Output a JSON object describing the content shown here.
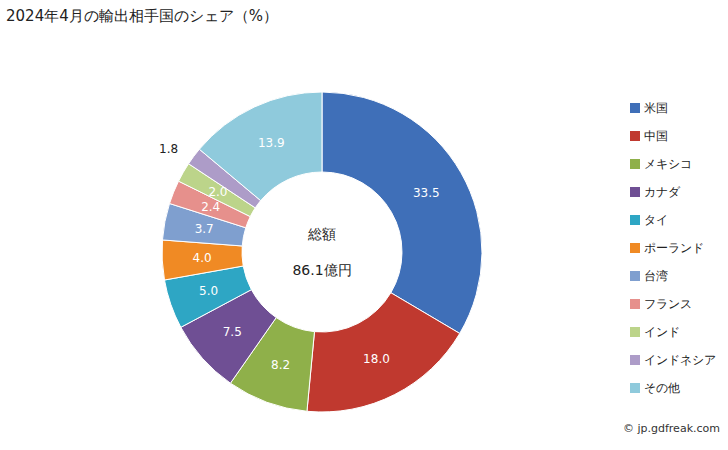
{
  "chart_data": {
    "type": "pie",
    "title": "2024年4月の輸出相手国のシェア（%）",
    "categories": [
      "米国",
      "中国",
      "メキシコ",
      "カナダ",
      "タイ",
      "ポーランド",
      "台湾",
      "フランス",
      "インド",
      "インドネシア",
      "その他"
    ],
    "values": [
      33.5,
      18.0,
      8.2,
      7.5,
      5.0,
      4.0,
      3.7,
      2.4,
      2.0,
      1.8,
      13.9
    ],
    "value_labels": [
      "33.5",
      "18.0",
      "8.2",
      "7.5",
      "5.0",
      "4.0",
      "3.7",
      "2.4",
      "2.0",
      "1.8",
      "13.9"
    ],
    "colors": [
      "#3f6fb8",
      "#c0392f",
      "#8fb04a",
      "#6f4f94",
      "#2ea6c4",
      "#f08a24",
      "#7f9fcf",
      "#e6908c",
      "#bcd48a",
      "#ad9cc8",
      "#8fcadc"
    ],
    "data_labels": true,
    "legend": "right",
    "annotations": [
      "総額",
      "86.1億円"
    ],
    "source": "© jp.gdfreak.com"
  }
}
